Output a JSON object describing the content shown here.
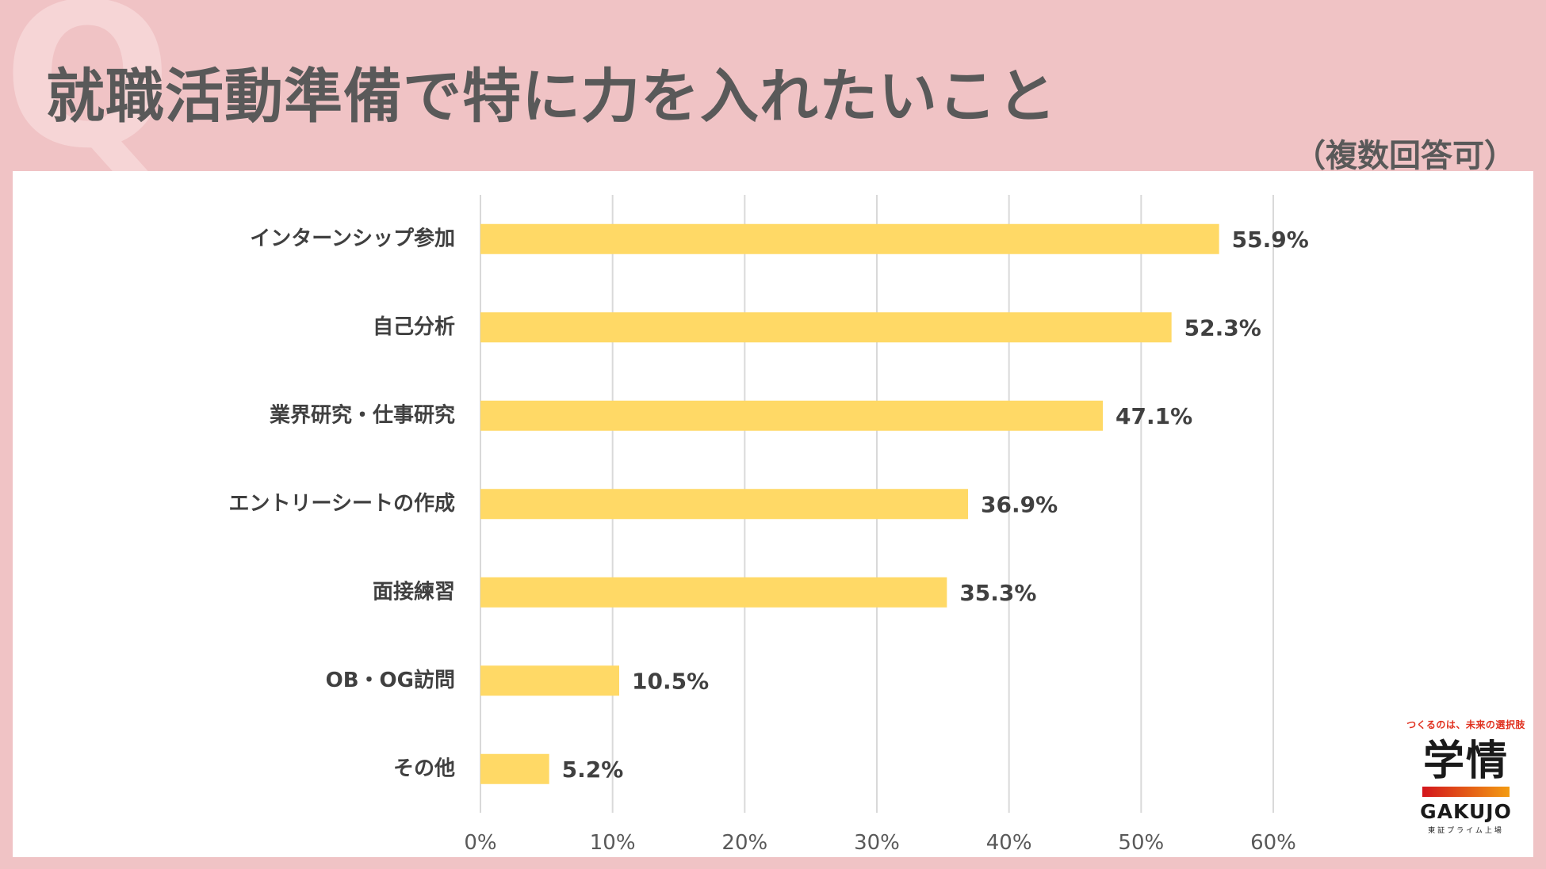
{
  "header": {
    "q_mark": "Q",
    "title": "就職活動準備で特に力を入れたいこと",
    "subtitle": "（複数回答可）"
  },
  "logo": {
    "tagline": "つくるのは、未来の選択肢",
    "name": "学情",
    "roman": "GAKUJO",
    "listing": "東証プライム上場"
  },
  "colors": {
    "background": "#f0c3c5",
    "bar": "#ffd966",
    "grid": "#d9d9d9",
    "text": "#404040"
  },
  "chart_data": {
    "type": "bar",
    "orientation": "horizontal",
    "title": "就職活動準備で特に力を入れたいこと",
    "categories": [
      "インターンシップ参加",
      "自己分析",
      "業界研究・仕事研究",
      "エントリーシートの作成",
      "面接練習",
      "OB・OG訪問",
      "その他"
    ],
    "values": [
      55.9,
      52.3,
      47.1,
      36.9,
      35.3,
      10.5,
      5.2
    ],
    "value_labels": [
      "55.9%",
      "52.3%",
      "47.1%",
      "36.9%",
      "35.3%",
      "10.5%",
      "5.2%"
    ],
    "xlim": [
      0,
      60
    ],
    "xticks": [
      0,
      10,
      20,
      30,
      40,
      50,
      60
    ],
    "xtick_labels": [
      "0%",
      "10%",
      "20%",
      "30%",
      "40%",
      "50%",
      "60%"
    ],
    "xlabel": "",
    "ylabel": "",
    "grid": true,
    "legend": "none"
  }
}
